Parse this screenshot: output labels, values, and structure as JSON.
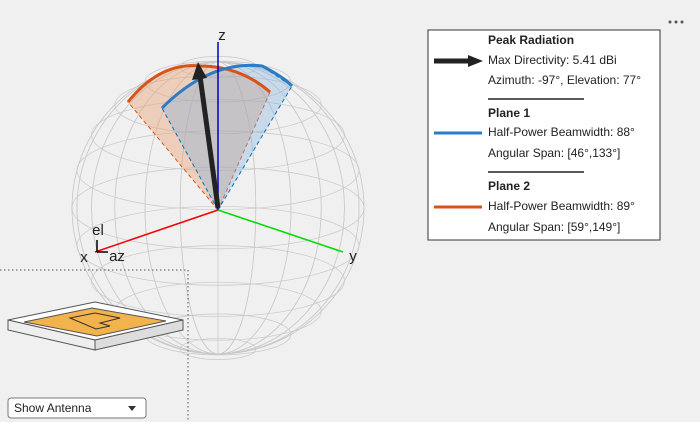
{
  "axes": {
    "x": "x",
    "y": "y",
    "z": "z",
    "el": "el",
    "az": "az"
  },
  "legend": {
    "peak": {
      "title": "Peak Radiation",
      "lines": [
        "Max Directivity: 5.41 dBi",
        "Azimuth: -97°, Elevation: 77°"
      ]
    },
    "plane1": {
      "title": "Plane 1",
      "lines": [
        "Half-Power Beamwidth: 88°",
        "Angular Span: [46°,133°]"
      ]
    },
    "plane2": {
      "title": "Plane 2",
      "lines": [
        "Half-Power Beamwidth: 89°",
        "Angular Span: [59°,149°]"
      ]
    }
  },
  "dropdown": {
    "label": "Show Antenna"
  }
}
